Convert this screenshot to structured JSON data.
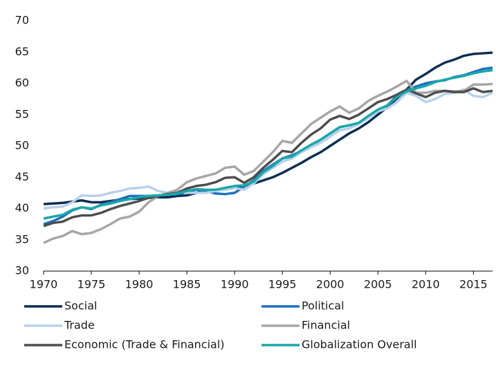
{
  "chart_data": {
    "type": "line",
    "x": [
      1970,
      1971,
      1972,
      1973,
      1974,
      1975,
      1976,
      1977,
      1978,
      1979,
      1980,
      1981,
      1982,
      1983,
      1984,
      1985,
      1986,
      1987,
      1988,
      1989,
      1990,
      1991,
      1992,
      1993,
      1994,
      1995,
      1996,
      1997,
      1998,
      1999,
      2000,
      2001,
      2002,
      2003,
      2004,
      2005,
      2006,
      2007,
      2008,
      2009,
      2010,
      2011,
      2012,
      2013,
      2014,
      2015,
      2016,
      2017
    ],
    "xlim": [
      1970,
      2017
    ],
    "xticks": [
      1970,
      1975,
      1980,
      1985,
      1990,
      1995,
      2000,
      2005,
      2010,
      2015
    ],
    "ylim": [
      30,
      70
    ],
    "yticks": [
      30,
      35,
      40,
      45,
      50,
      55,
      60,
      65,
      70
    ],
    "grid": false,
    "legend": "bottom",
    "series": [
      {
        "name": "Social",
        "color": "#0d2d52",
        "values": [
          40.7,
          40.8,
          40.9,
          41.1,
          41.3,
          41.0,
          41.0,
          41.2,
          41.4,
          41.5,
          41.6,
          41.7,
          41.8,
          41.8,
          42.0,
          42.1,
          42.5,
          42.8,
          43.0,
          43.1,
          43.3,
          43.6,
          44.0,
          44.5,
          45.0,
          45.7,
          46.5,
          47.3,
          48.2,
          49.0,
          50.0,
          51.0,
          52.0,
          52.8,
          53.8,
          55.0,
          56.2,
          57.6,
          59.0,
          60.6,
          61.5,
          62.5,
          63.3,
          63.8,
          64.4,
          64.7,
          64.8,
          64.9
        ]
      },
      {
        "name": "Political",
        "color": "#1f6fbf",
        "values": [
          37.5,
          38.0,
          38.7,
          39.7,
          40.2,
          39.9,
          40.6,
          41.0,
          41.5,
          42.0,
          42.0,
          42.0,
          42.1,
          42.2,
          42.3,
          42.6,
          43.0,
          42.8,
          42.4,
          42.3,
          42.5,
          43.5,
          44.5,
          46.0,
          47.0,
          48.0,
          48.5,
          49.2,
          50.0,
          51.0,
          52.0,
          53.0,
          53.3,
          53.5,
          54.5,
          55.5,
          56.5,
          58.0,
          59.0,
          59.5,
          60.0,
          60.3,
          60.5,
          61.0,
          61.3,
          61.8,
          62.3,
          62.5
        ]
      },
      {
        "name": "Trade",
        "color": "#b8d0ec",
        "values": [
          40.0,
          40.2,
          40.3,
          41.0,
          42.1,
          42.0,
          42.1,
          42.5,
          42.8,
          43.2,
          43.3,
          43.5,
          42.8,
          42.5,
          42.8,
          42.5,
          42.5,
          42.5,
          42.8,
          43.0,
          43.3,
          43.0,
          44.0,
          45.5,
          46.5,
          47.5,
          48.0,
          49.0,
          49.8,
          50.5,
          51.5,
          52.5,
          52.8,
          53.5,
          54.5,
          55.5,
          56.0,
          57.0,
          58.5,
          58.0,
          57.0,
          57.5,
          58.3,
          58.5,
          59.0,
          58.0,
          57.8,
          58.5
        ]
      },
      {
        "name": "Financial",
        "color": "#a6a6a6",
        "values": [
          34.5,
          35.2,
          35.6,
          36.4,
          35.9,
          36.1,
          36.7,
          37.5,
          38.4,
          38.7,
          39.5,
          41.0,
          42.0,
          42.5,
          43.0,
          44.2,
          44.8,
          45.2,
          45.6,
          46.5,
          46.7,
          45.4,
          46.0,
          47.5,
          49.0,
          50.8,
          50.5,
          52.0,
          53.5,
          54.5,
          55.5,
          56.3,
          55.3,
          56.0,
          57.2,
          58.0,
          58.7,
          59.5,
          60.4,
          58.5,
          58.5,
          58.8,
          58.8,
          58.7,
          58.8,
          59.8,
          59.8,
          59.9
        ]
      },
      {
        "name": "Economic (Trade & Financial)",
        "color": "#4d4d4d",
        "values": [
          37.2,
          37.7,
          37.9,
          38.6,
          38.9,
          38.9,
          39.3,
          39.9,
          40.4,
          40.8,
          41.2,
          41.7,
          42.0,
          42.3,
          42.5,
          43.2,
          43.6,
          43.8,
          44.2,
          44.9,
          45.0,
          44.1,
          45.0,
          46.5,
          47.8,
          49.2,
          49.0,
          50.5,
          51.8,
          52.8,
          54.2,
          54.8,
          54.3,
          55.0,
          56.0,
          57.0,
          57.5,
          58.2,
          59.0,
          58.4,
          57.8,
          58.5,
          58.8,
          58.6,
          58.6,
          59.2,
          58.6,
          58.8
        ]
      },
      {
        "name": "Globalization Overall",
        "color": "#1aa8a8",
        "values": [
          38.4,
          38.7,
          39.0,
          39.8,
          40.2,
          40.0,
          40.5,
          40.8,
          41.2,
          41.5,
          41.8,
          42.0,
          42.1,
          42.2,
          42.4,
          42.8,
          43.1,
          43.0,
          43.0,
          43.3,
          43.6,
          43.7,
          44.3,
          45.8,
          46.8,
          48.0,
          48.3,
          49.3,
          50.2,
          51.0,
          52.0,
          53.0,
          53.3,
          53.7,
          54.8,
          55.8,
          56.5,
          57.8,
          58.7,
          59.2,
          59.6,
          60.2,
          60.6,
          60.9,
          61.2,
          61.6,
          61.9,
          62.1
        ]
      }
    ]
  }
}
